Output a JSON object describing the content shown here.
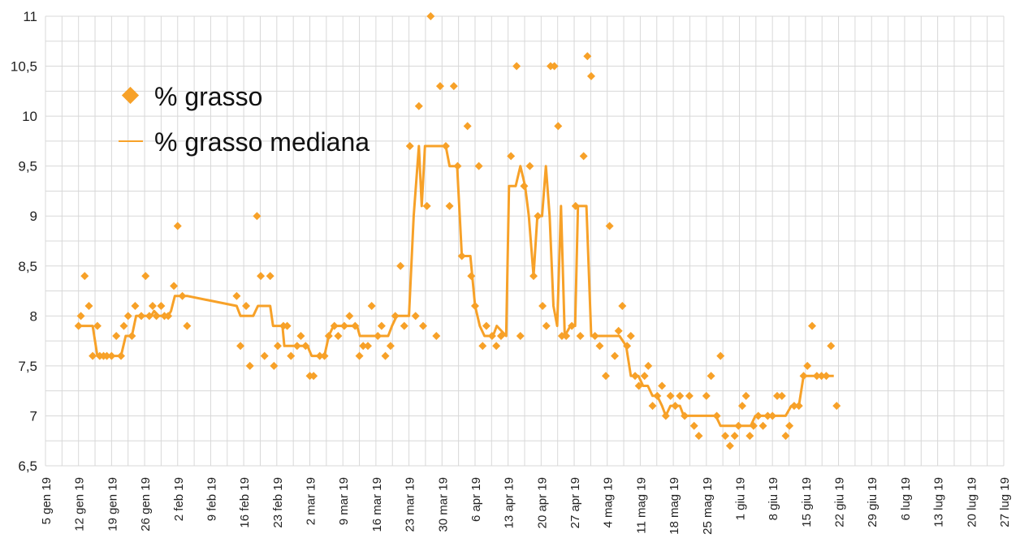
{
  "chart_data": {
    "type": "scatter",
    "title": "",
    "xlabel": "",
    "ylabel": "",
    "ylim": [
      6.5,
      11
    ],
    "y_ticks": [
      "6,5",
      "7",
      "7,5",
      "8",
      "8,5",
      "9",
      "9,5",
      "10",
      "10,5",
      "11"
    ],
    "x_ticks": [
      "5 gen 19",
      "12 gen 19",
      "19 gen 19",
      "26 gen 19",
      "2 feb 19",
      "9 feb 19",
      "16 feb 19",
      "23 feb 19",
      "2 mar 19",
      "9 mar 19",
      "16 mar 19",
      "23 mar 19",
      "30 mar 19",
      "6 apr 19",
      "13 apr 19",
      "20 apr 19",
      "27 apr 19",
      "4 mag 19",
      "11 mag 19",
      "18 mag 19",
      "25 mag 19",
      "1 giu 19",
      "8 giu 19",
      "15 giu 19",
      "22 giu 19",
      "29 giu 19",
      "6 lug 19",
      "13 lug 19",
      "20 lug 19",
      "27 lug 19"
    ],
    "x_unit": "days from 5 gen 19",
    "xlim": [
      0,
      203
    ],
    "grid": true,
    "legend_position": "top-left",
    "colors": {
      "series": "#f7a128",
      "grid": "#d8d8d8"
    },
    "series": [
      {
        "name": "% grasso",
        "kind": "scatter",
        "points": [
          [
            7,
            7.9
          ],
          [
            7.5,
            8.0
          ],
          [
            8.3,
            8.4
          ],
          [
            9.2,
            8.1
          ],
          [
            10,
            7.6
          ],
          [
            11,
            7.9
          ],
          [
            11.5,
            7.6
          ],
          [
            12.3,
            7.6
          ],
          [
            13,
            7.6
          ],
          [
            14,
            7.6
          ],
          [
            15,
            7.8
          ],
          [
            16,
            7.6
          ],
          [
            16.6,
            7.9
          ],
          [
            17.5,
            8.0
          ],
          [
            18.3,
            7.8
          ],
          [
            19,
            8.1
          ],
          [
            20.3,
            8.0
          ],
          [
            21.2,
            8.4
          ],
          [
            22,
            8.0
          ],
          [
            22.7,
            8.1
          ],
          [
            23.5,
            8.0
          ],
          [
            24.5,
            8.1
          ],
          [
            25.2,
            8.0
          ],
          [
            26,
            8.0
          ],
          [
            27.2,
            8.3
          ],
          [
            28,
            8.9
          ],
          [
            29,
            8.2
          ],
          [
            30,
            7.9
          ],
          [
            40.5,
            8.2
          ],
          [
            41.3,
            7.7
          ],
          [
            42.5,
            8.1
          ],
          [
            43.3,
            7.5
          ],
          [
            44.8,
            9.0
          ],
          [
            45.6,
            8.4
          ],
          [
            46.4,
            7.6
          ],
          [
            47.6,
            8.4
          ],
          [
            48.4,
            7.5
          ],
          [
            49.2,
            7.7
          ],
          [
            50.4,
            7.9
          ],
          [
            51.2,
            7.9
          ],
          [
            52,
            7.6
          ],
          [
            53.3,
            7.7
          ],
          [
            54.1,
            7.8
          ],
          [
            55.1,
            7.7
          ],
          [
            56,
            7.4
          ],
          [
            56.8,
            7.4
          ],
          [
            58.1,
            7.6
          ],
          [
            59.1,
            7.6
          ],
          [
            60,
            7.8
          ],
          [
            61.2,
            7.9
          ],
          [
            62,
            7.8
          ],
          [
            63.3,
            7.9
          ],
          [
            64.4,
            8.0
          ],
          [
            65.6,
            7.9
          ],
          [
            66.5,
            7.6
          ],
          [
            67.3,
            7.7
          ],
          [
            68.3,
            7.7
          ],
          [
            69.1,
            8.1
          ],
          [
            70.4,
            7.8
          ],
          [
            71.2,
            7.9
          ],
          [
            72,
            7.6
          ],
          [
            73.1,
            7.7
          ],
          [
            74.1,
            8.0
          ],
          [
            75.2,
            8.5
          ],
          [
            76,
            7.9
          ],
          [
            77.2,
            9.7
          ],
          [
            78.4,
            8.0
          ],
          [
            79.1,
            10.1
          ],
          [
            80,
            7.9
          ],
          [
            80.8,
            9.1
          ],
          [
            81.6,
            11.0
          ],
          [
            82.8,
            7.8
          ],
          [
            83.6,
            10.3
          ],
          [
            84.8,
            9.7
          ],
          [
            85.6,
            9.1
          ],
          [
            86.5,
            10.3
          ],
          [
            87.3,
            9.5
          ],
          [
            88.2,
            8.6
          ],
          [
            89.4,
            9.9
          ],
          [
            90.2,
            8.4
          ],
          [
            91,
            8.1
          ],
          [
            91.8,
            9.5
          ],
          [
            92.6,
            7.7
          ],
          [
            93.4,
            7.9
          ],
          [
            94.6,
            7.8
          ],
          [
            95.5,
            7.7
          ],
          [
            96.5,
            7.8
          ],
          [
            98.6,
            9.6
          ],
          [
            99.8,
            10.5
          ],
          [
            100.6,
            7.8
          ],
          [
            101.4,
            9.3
          ],
          [
            102.6,
            9.5
          ],
          [
            103.4,
            8.4
          ],
          [
            104.3,
            9.0
          ],
          [
            105.3,
            8.1
          ],
          [
            106.1,
            7.9
          ],
          [
            107,
            10.5
          ],
          [
            107.8,
            10.5
          ],
          [
            108.6,
            9.9
          ],
          [
            109.4,
            7.8
          ],
          [
            110.3,
            7.8
          ],
          [
            111.5,
            7.9
          ],
          [
            112.3,
            9.1
          ],
          [
            113.3,
            7.8
          ],
          [
            114,
            9.6
          ],
          [
            114.8,
            10.6
          ],
          [
            115.6,
            10.4
          ],
          [
            116.4,
            7.8
          ],
          [
            117.4,
            7.7
          ],
          [
            118.7,
            7.4
          ],
          [
            119.5,
            8.9
          ],
          [
            120.6,
            7.6
          ],
          [
            121.4,
            7.85
          ],
          [
            122.2,
            8.1
          ],
          [
            123.2,
            7.7
          ],
          [
            124,
            7.8
          ],
          [
            124.9,
            7.4
          ],
          [
            125.7,
            7.3
          ],
          [
            126.9,
            7.4
          ],
          [
            127.7,
            7.5
          ],
          [
            128.6,
            7.1
          ],
          [
            129.6,
            7.2
          ],
          [
            130.6,
            7.3
          ],
          [
            131.4,
            7.0
          ],
          [
            132.4,
            7.2
          ],
          [
            133.4,
            7.1
          ],
          [
            134.4,
            7.2
          ],
          [
            135.4,
            7.0
          ],
          [
            136.4,
            7.2
          ],
          [
            137.4,
            6.9
          ],
          [
            138.4,
            6.8
          ],
          [
            140,
            7.2
          ],
          [
            141,
            7.4
          ],
          [
            142.2,
            7.0
          ],
          [
            143,
            7.6
          ],
          [
            144,
            6.8
          ],
          [
            145,
            6.7
          ],
          [
            146,
            6.8
          ],
          [
            146.8,
            6.9
          ],
          [
            147.6,
            7.1
          ],
          [
            148.4,
            7.2
          ],
          [
            149.2,
            6.8
          ],
          [
            150,
            6.9
          ],
          [
            151,
            7.0
          ],
          [
            152,
            6.9
          ],
          [
            153,
            7.0
          ],
          [
            154,
            7.0
          ],
          [
            155,
            7.2
          ],
          [
            156,
            7.2
          ],
          [
            156.8,
            6.8
          ],
          [
            157.6,
            6.9
          ],
          [
            158.6,
            7.1
          ],
          [
            159.6,
            7.1
          ],
          [
            160.6,
            7.4
          ],
          [
            161.4,
            7.5
          ],
          [
            162.4,
            7.9
          ],
          [
            163.4,
            7.4
          ],
          [
            164.4,
            7.4
          ],
          [
            165.4,
            7.4
          ],
          [
            166.4,
            7.7
          ],
          [
            167.6,
            7.1
          ]
        ]
      },
      {
        "name": "% grasso mediana",
        "kind": "line",
        "points": [
          [
            7,
            7.9
          ],
          [
            10,
            7.9
          ],
          [
            11,
            7.6
          ],
          [
            16,
            7.6
          ],
          [
            17,
            7.8
          ],
          [
            18.3,
            7.8
          ],
          [
            19.2,
            8.0
          ],
          [
            22.4,
            8.0
          ],
          [
            23,
            8.05
          ],
          [
            24,
            8.0
          ],
          [
            26,
            8.0
          ],
          [
            26.6,
            8.05
          ],
          [
            27.4,
            8.2
          ],
          [
            30,
            8.2
          ],
          [
            40.5,
            8.1
          ],
          [
            41.3,
            8.0
          ],
          [
            44,
            8.0
          ],
          [
            45,
            8.1
          ],
          [
            47.6,
            8.1
          ],
          [
            48.2,
            7.9
          ],
          [
            50.2,
            7.9
          ],
          [
            50.6,
            7.7
          ],
          [
            55.5,
            7.7
          ],
          [
            56.4,
            7.6
          ],
          [
            59.1,
            7.6
          ],
          [
            60,
            7.8
          ],
          [
            61,
            7.9
          ],
          [
            66,
            7.9
          ],
          [
            66.6,
            7.8
          ],
          [
            72.6,
            7.8
          ],
          [
            73.4,
            7.9
          ],
          [
            74.4,
            8.0
          ],
          [
            77,
            8.0
          ],
          [
            78,
            9.0
          ],
          [
            79.1,
            9.7
          ],
          [
            79.7,
            9.1
          ],
          [
            80.4,
            9.7
          ],
          [
            84.8,
            9.7
          ],
          [
            85.6,
            9.5
          ],
          [
            87.2,
            9.5
          ],
          [
            88.2,
            8.6
          ],
          [
            89.4,
            8.6
          ],
          [
            90,
            8.6
          ],
          [
            91,
            8.1
          ],
          [
            92,
            7.9
          ],
          [
            93,
            7.8
          ],
          [
            94.8,
            7.8
          ],
          [
            95.6,
            7.9
          ],
          [
            97.6,
            7.8
          ],
          [
            98.2,
            9.3
          ],
          [
            99.6,
            9.3
          ],
          [
            100.6,
            9.5
          ],
          [
            101.6,
            9.3
          ],
          [
            102.4,
            9.0
          ],
          [
            103.4,
            8.4
          ],
          [
            104.2,
            9.0
          ],
          [
            105.2,
            9.0
          ],
          [
            106,
            9.5
          ],
          [
            106.8,
            9.0
          ],
          [
            107.6,
            8.1
          ],
          [
            108.4,
            7.9
          ],
          [
            109.2,
            9.1
          ],
          [
            110,
            7.8
          ],
          [
            111.2,
            7.9
          ],
          [
            112.2,
            7.9
          ],
          [
            112.8,
            9.1
          ],
          [
            114.6,
            9.1
          ],
          [
            115.6,
            7.8
          ],
          [
            117.6,
            7.8
          ],
          [
            118.6,
            7.8
          ],
          [
            120.6,
            7.8
          ],
          [
            121.6,
            7.8
          ],
          [
            123,
            7.7
          ],
          [
            124,
            7.4
          ],
          [
            125.6,
            7.4
          ],
          [
            126.6,
            7.3
          ],
          [
            127.6,
            7.3
          ],
          [
            128.6,
            7.2
          ],
          [
            129.6,
            7.2
          ],
          [
            130.6,
            7.1
          ],
          [
            131.4,
            7.0
          ],
          [
            132.4,
            7.1
          ],
          [
            133.4,
            7.1
          ],
          [
            134.4,
            7.1
          ],
          [
            135.2,
            7.0
          ],
          [
            140,
            7.0
          ],
          [
            142,
            7.0
          ],
          [
            143,
            6.9
          ],
          [
            148,
            6.9
          ],
          [
            149.4,
            6.9
          ],
          [
            150.4,
            7.0
          ],
          [
            155,
            7.0
          ],
          [
            156.8,
            7.0
          ],
          [
            158,
            7.1
          ],
          [
            159.6,
            7.1
          ],
          [
            160.6,
            7.4
          ],
          [
            167,
            7.4
          ]
        ]
      }
    ]
  }
}
